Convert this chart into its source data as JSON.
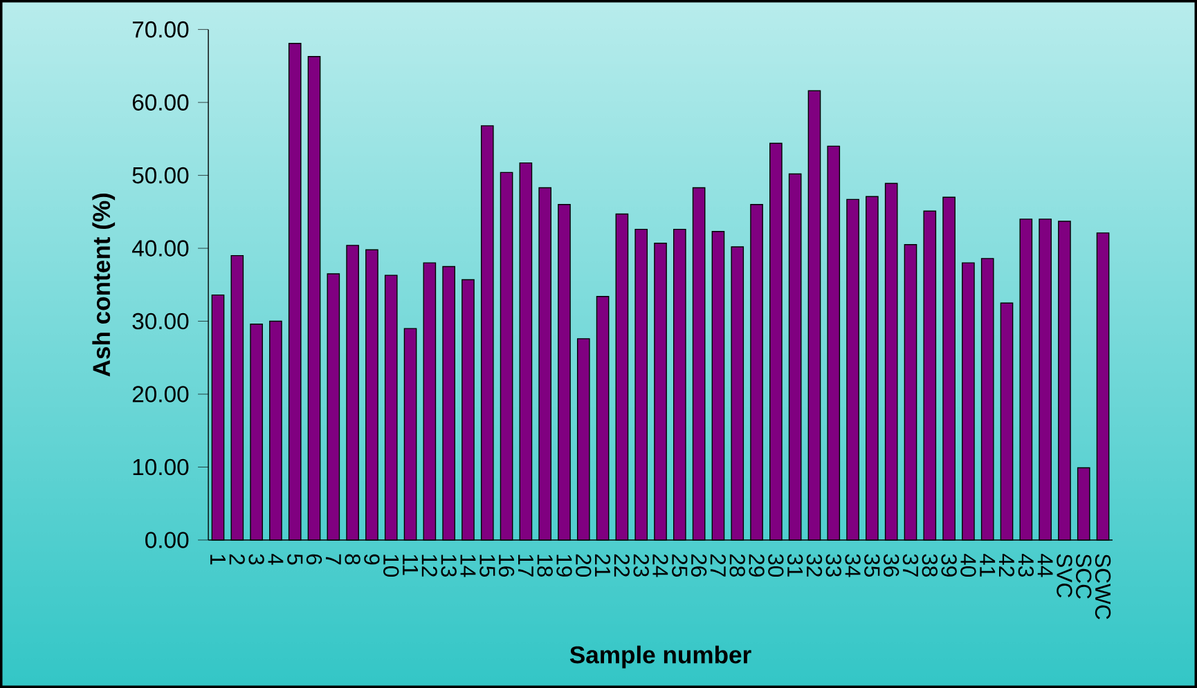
{
  "chart_data": {
    "type": "bar",
    "xlabel": "Sample number",
    "ylabel": "Ash content (%)",
    "categories": [
      "1",
      "2",
      "3",
      "4",
      "5",
      "6",
      "7",
      "8",
      "9",
      "10",
      "11",
      "12",
      "13",
      "14",
      "15",
      "16",
      "17",
      "18",
      "19",
      "20",
      "21",
      "22",
      "23",
      "24",
      "25",
      "26",
      "27",
      "28",
      "29",
      "30",
      "31",
      "32",
      "33",
      "34",
      "35",
      "36",
      "37",
      "38",
      "39",
      "40",
      "41",
      "42",
      "43",
      "44",
      "SVC",
      "SCC",
      "SCWC"
    ],
    "values": [
      33.6,
      39.0,
      29.6,
      30.0,
      68.1,
      66.3,
      36.5,
      40.4,
      39.8,
      36.3,
      29.0,
      38.0,
      37.5,
      35.7,
      56.8,
      50.4,
      51.7,
      48.3,
      46.0,
      27.6,
      33.4,
      44.7,
      42.6,
      40.7,
      42.6,
      48.3,
      42.3,
      40.2,
      46.0,
      54.4,
      50.2,
      61.6,
      54.0,
      46.7,
      47.1,
      48.9,
      40.5,
      45.1,
      47.0,
      38.0,
      38.6,
      32.5,
      44.0,
      44.0,
      43.7,
      9.9,
      42.1
    ],
    "color": "#800080",
    "ylim": [
      0,
      70
    ],
    "yticks": [
      {
        "value": 0,
        "label": "0.00"
      },
      {
        "value": 10,
        "label": "10.00"
      },
      {
        "value": 20,
        "label": "20.00"
      },
      {
        "value": 30,
        "label": "30.00"
      },
      {
        "value": 40,
        "label": "40.00"
      },
      {
        "value": 50,
        "label": "50.00"
      },
      {
        "value": 60,
        "label": "60.00"
      },
      {
        "value": 70,
        "label": "70.00"
      }
    ],
    "grid": false
  }
}
